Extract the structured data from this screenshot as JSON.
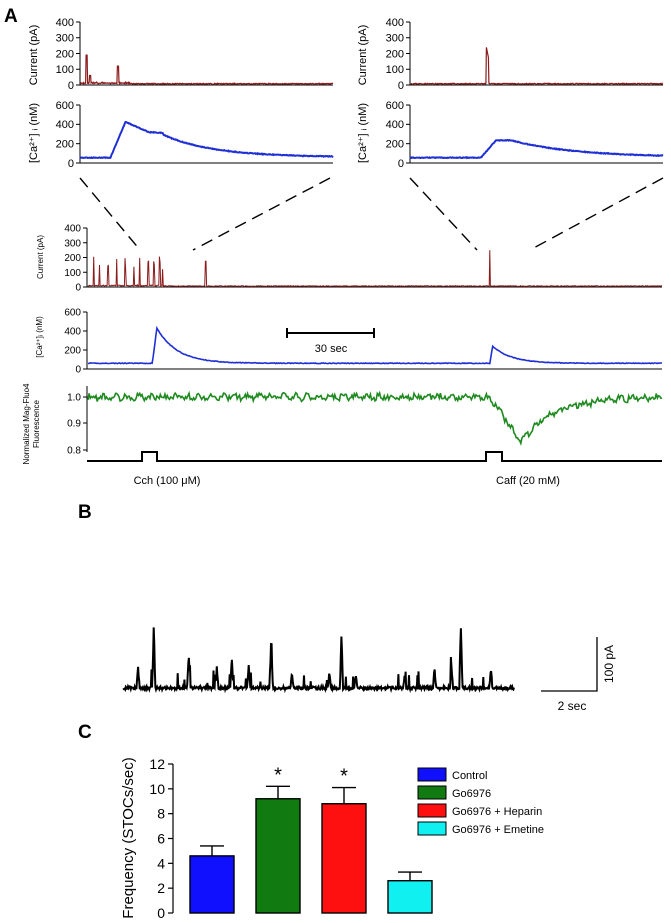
{
  "colors": {
    "current": "#8b1c1c",
    "calcium": "#1f2fd6",
    "fluo": "#1f8a1f",
    "trace_b": "#000000"
  },
  "panels": {
    "a": "A",
    "b": "B",
    "c": "C"
  },
  "panel_a": {
    "top_current_ylabel": "Current (pA)",
    "top_ca_ylabel": "[Ca²⁺] ᵢ (nM)",
    "mid_current_ylabel": "Current (pA)",
    "mid_ca_ylabel": "[Ca²⁺]ᵢ (nM)",
    "fluo_ylabel_1": "Normalized Mag-Fluo4",
    "fluo_ylabel_2": "Fluorescence",
    "current_ticks": [
      "400",
      "300",
      "200",
      "100",
      "0"
    ],
    "ca_ticks": [
      "600",
      "400",
      "200",
      "0"
    ],
    "fluo_ticks": [
      "1.0",
      "0.9",
      "0.8"
    ],
    "scale_bar_label": "30 sec",
    "stim_1": "Cch (100 μM)",
    "stim_2": "Caff (20 mM)"
  },
  "panel_b": {
    "x_scale": "2 sec",
    "y_scale": "100 pA"
  },
  "chart_data": [
    {
      "panel": "A",
      "type": "line",
      "title": "",
      "series": [
        {
          "name": "Current (pA) – Cch expanded",
          "peaks": [
            190,
            120,
            120
          ],
          "baseline": 5,
          "ylim": [
            0,
            400
          ]
        },
        {
          "name": "[Ca2+]i (nM) – Cch expanded",
          "baseline": 55,
          "peak": 425,
          "plateau": 290,
          "end": 60,
          "ylim": [
            0,
            600
          ]
        },
        {
          "name": "Current (pA) – Caff expanded",
          "peaks": [
            255
          ],
          "baseline": 5,
          "ylim": [
            0,
            400
          ]
        },
        {
          "name": "[Ca2+]i (nM) – Caff expanded",
          "baseline": 55,
          "peak": 235,
          "end": 60,
          "ylim": [
            0,
            600
          ]
        },
        {
          "name": "Current (pA) – full record",
          "ylim": [
            0,
            400
          ]
        },
        {
          "name": "[Ca2+]i (nM) – full record",
          "baseline": 60,
          "peaks": [
            430,
            240
          ],
          "ylim": [
            0,
            600
          ]
        },
        {
          "name": "Normalized Mag-Fluo4 Fluorescence",
          "baseline": 1.0,
          "min_after_caffeine": 0.83,
          "ylim": [
            0.8,
            1.05
          ]
        }
      ]
    },
    {
      "panel": "B",
      "type": "line",
      "title": "",
      "xlabel": "",
      "ylabel": "",
      "series": [
        {
          "name": "STOCs current trace",
          "peaks_pA": [
            42,
            115,
            65,
            40,
            57,
            45,
            30,
            98,
            30,
            27,
            96,
            23,
            36,
            42,
            119,
            37
          ]
        }
      ]
    },
    {
      "panel": "C",
      "type": "bar",
      "title": "",
      "xlabel": "",
      "ylabel": "Frequency (STOCs/sec)",
      "ylim": [
        0,
        12
      ],
      "yticks": [
        "0",
        "2",
        "4",
        "6",
        "8",
        "10",
        "12"
      ],
      "categories": [
        "Control",
        "Go6976",
        "Go6976 + Heparin",
        "Go6976 + Emetine"
      ],
      "values": [
        4.6,
        9.2,
        8.8,
        2.6
      ],
      "errors": [
        0.8,
        1.0,
        1.3,
        0.7
      ],
      "colors": [
        "#1010ff",
        "#117a11",
        "#ff1010",
        "#10f0f0"
      ],
      "significance": [
        "",
        "*",
        "*",
        ""
      ]
    }
  ]
}
